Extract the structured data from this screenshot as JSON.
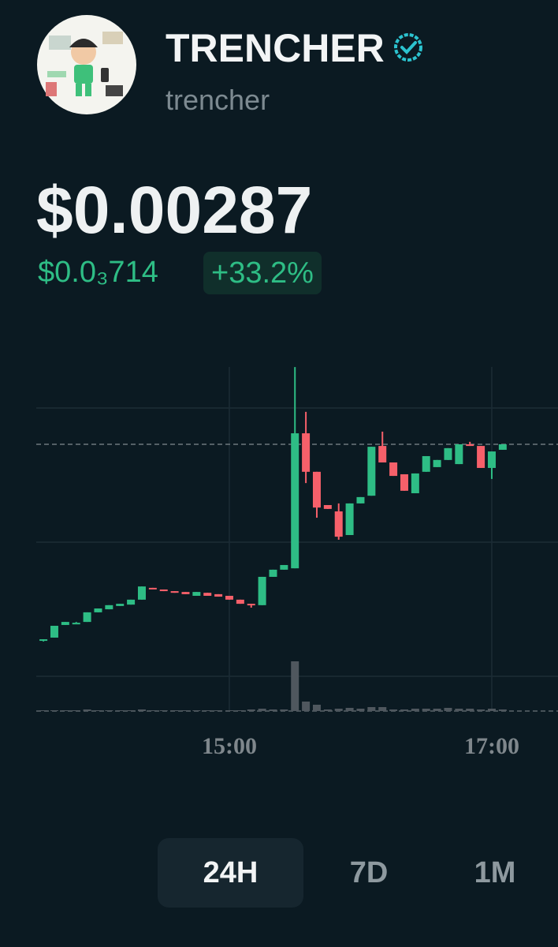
{
  "header": {
    "name": "TRENCHER",
    "handle": "trencher"
  },
  "price": {
    "current": "$0.00287",
    "change_abs": "$0.0₃714",
    "change_pct": "+33.2%"
  },
  "chart_data": {
    "type": "candlestick",
    "categories": [
      null,
      null,
      null,
      null,
      null,
      null,
      null,
      null,
      null,
      null,
      null,
      null,
      null,
      null,
      null,
      null,
      null,
      "15:00",
      null,
      null,
      null,
      null,
      null,
      null,
      null,
      null,
      null,
      null,
      null,
      null,
      null,
      null,
      null,
      null,
      null,
      null,
      null,
      null,
      null,
      null,
      null,
      "17:00",
      null
    ],
    "open": [
      0.002158,
      0.002167,
      0.002213,
      0.002221,
      0.002224,
      0.002259,
      0.00227,
      0.002282,
      0.002287,
      0.002305,
      0.002348,
      0.002342,
      0.002336,
      0.002333,
      0.002319,
      0.00233,
      0.002325,
      0.002319,
      0.002305,
      0.00229,
      0.002285,
      0.002388,
      0.002414,
      0.002419,
      0.00291,
      0.00277,
      0.002649,
      0.002626,
      0.00254,
      0.002655,
      0.002683,
      0.002864,
      0.002804,
      0.002761,
      0.002692,
      0.00277,
      0.002787,
      0.002813,
      0.002798,
      0.00287,
      0.002864,
      0.002784,
      0.00285
    ],
    "high": [
      0.002161,
      0.00221,
      0.002224,
      0.002224,
      0.002259,
      0.002273,
      0.002285,
      0.00229,
      0.002305,
      0.002353,
      0.002348,
      0.002342,
      0.002336,
      0.002333,
      0.002333,
      0.00233,
      0.002325,
      0.002319,
      0.002305,
      0.00229,
      0.002388,
      0.002414,
      0.002431,
      0.003151,
      0.002988,
      0.00277,
      0.002649,
      0.002655,
      0.002655,
      0.002678,
      0.002861,
      0.002916,
      0.002804,
      0.002761,
      0.002764,
      0.002827,
      0.002813,
      0.002856,
      0.00287,
      0.002879,
      0.002864,
      0.002844,
      0.00287
    ],
    "low": [
      0.002153,
      0.002167,
      0.002213,
      0.002221,
      0.002224,
      0.002259,
      0.00227,
      0.002282,
      0.002287,
      0.002305,
      0.002345,
      0.002336,
      0.00233,
      0.002325,
      0.002319,
      0.002319,
      0.002316,
      0.002305,
      0.00229,
      0.002276,
      0.002285,
      0.002388,
      0.002414,
      0.002419,
      0.002729,
      0.002603,
      0.002635,
      0.002523,
      0.00254,
      0.002655,
      0.002683,
      0.002804,
      0.002755,
      0.002701,
      0.002692,
      0.00277,
      0.002787,
      0.002813,
      0.002798,
      0.002864,
      0.002784,
      0.002744,
      0.00285
    ],
    "close": [
      0.002161,
      0.00221,
      0.002224,
      0.002221,
      0.002259,
      0.002273,
      0.002285,
      0.00229,
      0.002305,
      0.002353,
      0.002345,
      0.002336,
      0.00233,
      0.002325,
      0.002333,
      0.002319,
      0.002316,
      0.002305,
      0.00229,
      0.002285,
      0.002388,
      0.002414,
      0.002431,
      0.00291,
      0.00277,
      0.00264,
      0.002635,
      0.002534,
      0.002655,
      0.002678,
      0.002861,
      0.002804,
      0.002755,
      0.002701,
      0.002764,
      0.002827,
      0.002813,
      0.002856,
      0.00287,
      0.002864,
      0.002784,
      0.002844,
      0.00287
    ],
    "volume": [
      1,
      1,
      1,
      1,
      2,
      1,
      1,
      1,
      1,
      2,
      1,
      1,
      1,
      1,
      1,
      1,
      1,
      1,
      1,
      2,
      3,
      2,
      2,
      63,
      12,
      8,
      2,
      3,
      4,
      3,
      5,
      5,
      2,
      2,
      3,
      3,
      3,
      4,
      3,
      3,
      2,
      3,
      2
    ],
    "ylim": [
      0.0019,
      0.0032
    ],
    "volume_lim": [
      0,
      100
    ],
    "price_line": 0.00287,
    "up_color": "#2ebd85",
    "down_color": "#f6606a",
    "volume_color": "#4f575e"
  },
  "tabs": [
    "24H",
    "7D",
    "1M"
  ]
}
